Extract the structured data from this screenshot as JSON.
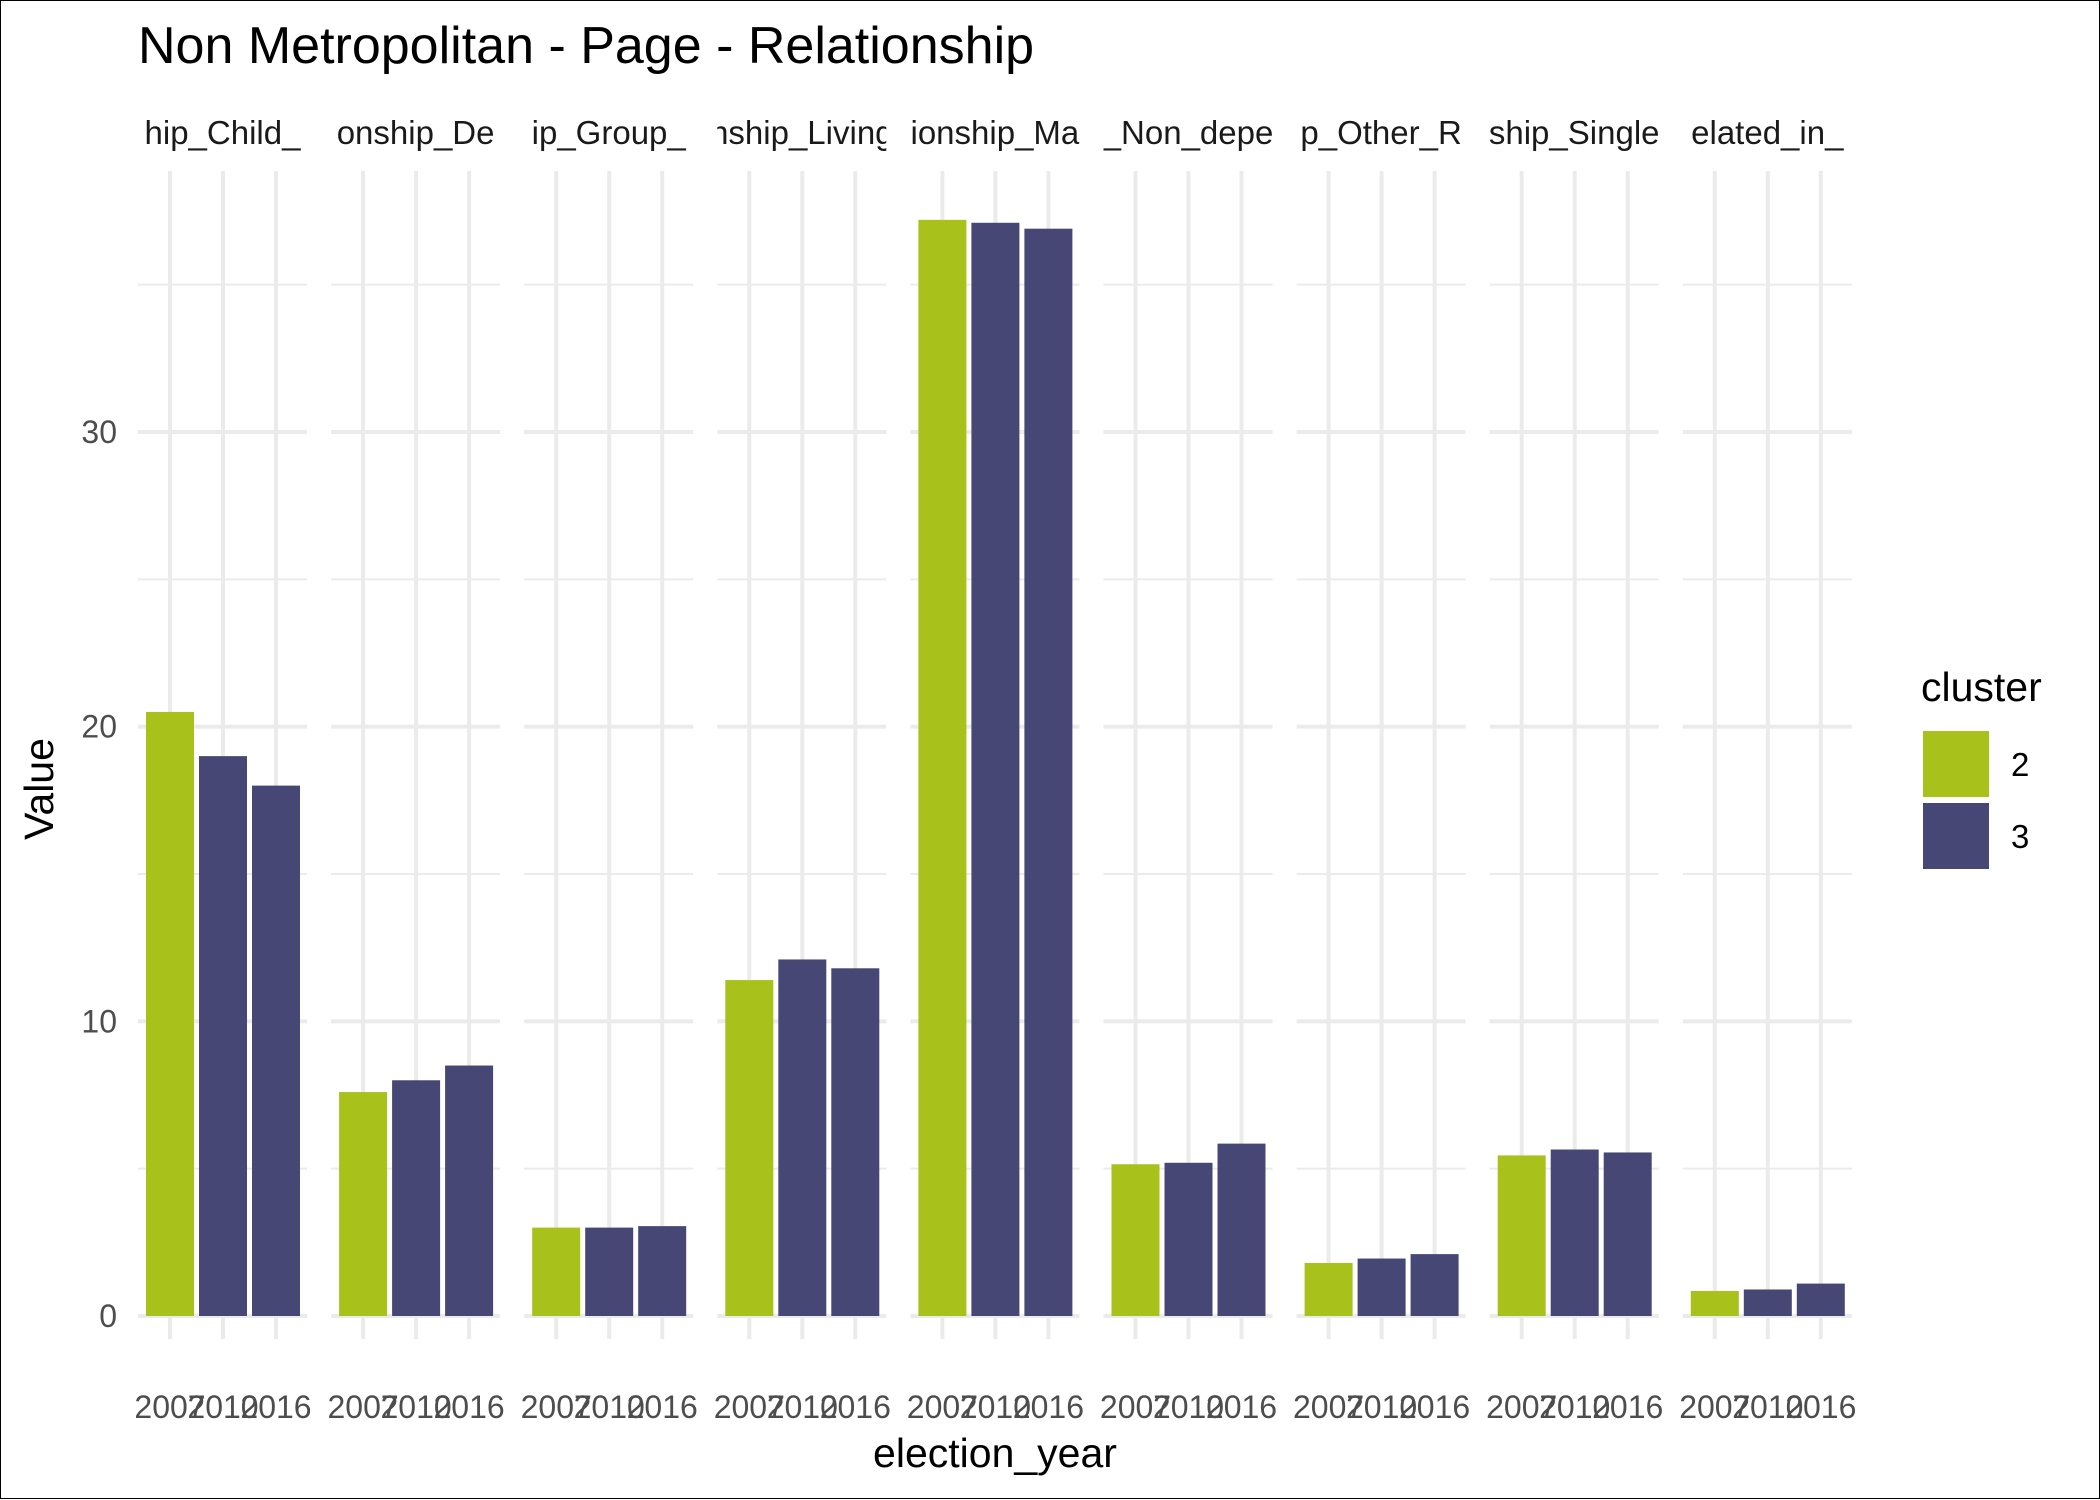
{
  "chart_data": {
    "type": "bar",
    "title": "Non Metropolitan - Page - Relationship",
    "xlabel": "election_year",
    "ylabel": "Value",
    "ylim": [
      0,
      37.5
    ],
    "yticks": [
      0,
      10,
      20,
      30
    ],
    "x": [
      "2007",
      "2010",
      "2016"
    ],
    "legend": {
      "title": "cluster",
      "position": "right",
      "entries": [
        {
          "name": "2",
          "color": "#a8c11b"
        },
        {
          "name": "3",
          "color": "#464775"
        }
      ]
    },
    "grid": true,
    "panels": [
      {
        "label": "hip_Child_",
        "values": [
          20.5,
          19.0,
          18.0
        ],
        "clusters": [
          "2",
          "3",
          "3"
        ]
      },
      {
        "label": "onship_De",
        "values": [
          7.6,
          8.0,
          8.5
        ],
        "clusters": [
          "2",
          "3",
          "3"
        ]
      },
      {
        "label": "ip_Group_",
        "values": [
          3.0,
          3.0,
          3.05
        ],
        "clusters": [
          "2",
          "3",
          "3"
        ]
      },
      {
        "label": "nship_Living",
        "values": [
          11.4,
          12.1,
          11.8
        ],
        "clusters": [
          "2",
          "3",
          "3"
        ]
      },
      {
        "label": "ionship_Ma",
        "values": [
          37.2,
          37.1,
          36.9
        ],
        "clusters": [
          "2",
          "3",
          "3"
        ]
      },
      {
        "label": "_Non_depe",
        "values": [
          5.15,
          5.2,
          5.85
        ],
        "clusters": [
          "2",
          "3",
          "3"
        ]
      },
      {
        "label": "p_Other_R",
        "values": [
          1.8,
          1.95,
          2.1
        ],
        "clusters": [
          "2",
          "3",
          "3"
        ]
      },
      {
        "label": "ship_Single",
        "values": [
          5.45,
          5.65,
          5.55
        ],
        "clusters": [
          "2",
          "3",
          "3"
        ]
      },
      {
        "label": "elated_in_",
        "values": [
          0.85,
          0.9,
          1.1
        ],
        "clusters": [
          "2",
          "3",
          "3"
        ]
      }
    ]
  }
}
